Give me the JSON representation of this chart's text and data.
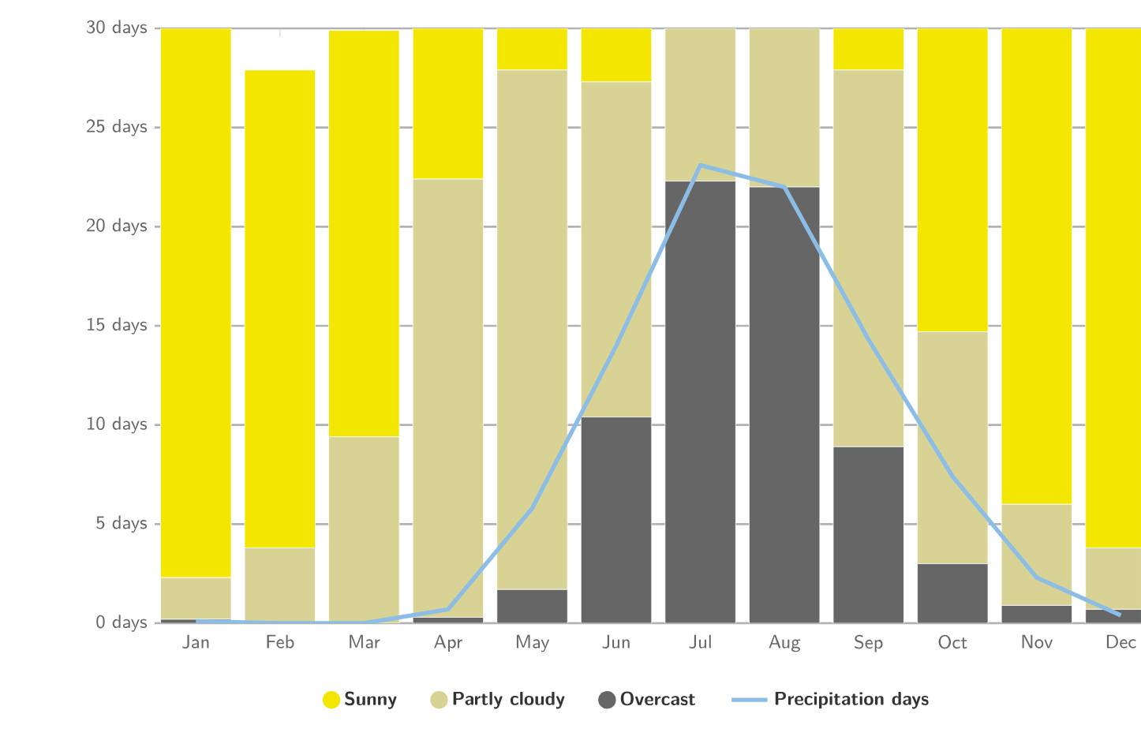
{
  "chart_data": {
    "type": "bar",
    "stacked": true,
    "categories": [
      "Jan",
      "Feb",
      "Mar",
      "Apr",
      "May",
      "Jun",
      "Jul",
      "Aug",
      "Sep",
      "Oct",
      "Nov",
      "Dec"
    ],
    "series": [
      {
        "name": "Overcast",
        "color": "#666666",
        "values": [
          0.2,
          null,
          null,
          0.3,
          1.7,
          10.4,
          22.3,
          22.0,
          8.9,
          3.0,
          0.9,
          0.7
        ]
      },
      {
        "name": "Partly cloudy",
        "color": "#d8d395",
        "values": [
          2.1,
          3.8,
          9.4,
          22.1,
          26.2,
          16.9,
          7.7,
          8.0,
          19.0,
          11.7,
          5.1,
          3.1
        ]
      },
      {
        "name": "Sunny",
        "color": "#f3e600",
        "values": [
          27.7,
          24.1,
          20.5,
          7.6,
          2.1,
          2.7,
          0,
          0,
          2.1,
          15.3,
          24.0,
          26.2
        ]
      },
      {
        "name": "Precipitation days",
        "type": "line",
        "color": "#8bbde6",
        "values": [
          0.1,
          0,
          0,
          0.7,
          5.8,
          14.0,
          23.1,
          22.0,
          14.3,
          7.4,
          2.3,
          0.4
        ]
      }
    ],
    "ylim": [
      0,
      30
    ],
    "yticks": [
      {
        "value": 0,
        "label": "0 days"
      },
      {
        "value": 5,
        "label": "5 days"
      },
      {
        "value": 10,
        "label": "10 days"
      },
      {
        "value": 15,
        "label": "15 days"
      },
      {
        "value": 20,
        "label": "20 days"
      },
      {
        "value": 25,
        "label": "25 days"
      },
      {
        "value": 30,
        "label": "30 days"
      }
    ],
    "grid": "y",
    "legend": "bottom"
  }
}
